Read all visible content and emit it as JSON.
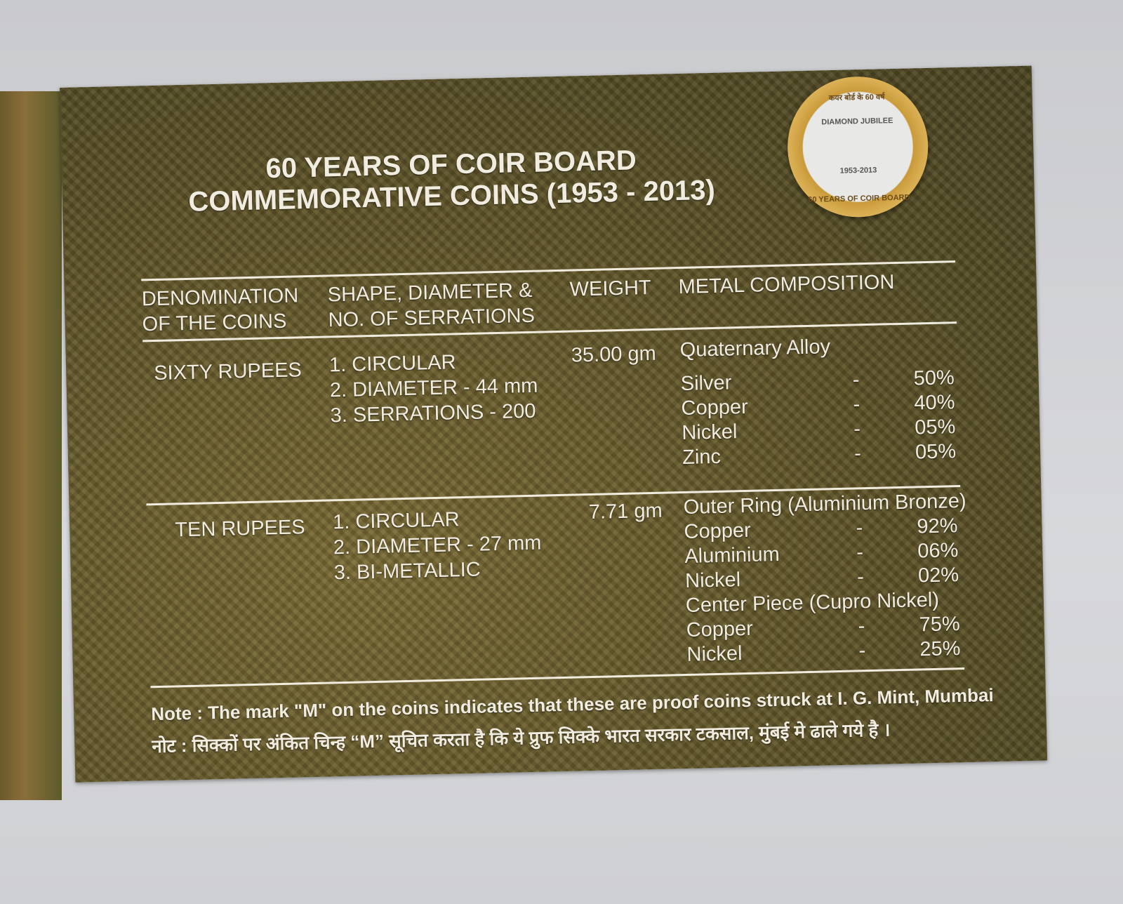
{
  "title": [
    "60 YEARS OF COIR BOARD",
    "COMMEMORATIVE COINS (1953 - 2013)"
  ],
  "coin": {
    "top": "कयर बोर्ड के 60 वर्ष",
    "label": "DIAMOND JUBILEE",
    "years": "1953-2013",
    "bottom": "60 YEARS OF COIR BOARD"
  },
  "table": {
    "headers": [
      [
        "DENOMINATION",
        "OF THE COINS"
      ],
      [
        "SHAPE, DIAMETER &",
        "NO. OF SERRATIONS"
      ],
      [
        "WEIGHT"
      ],
      [
        "METAL COMPOSITION"
      ]
    ],
    "rows": [
      {
        "denomination": "SIXTY RUPEES",
        "shape": [
          "1. CIRCULAR",
          "2. DIAMETER - 44 mm",
          "3. SERRATIONS - 200"
        ],
        "weight": "35.00 gm",
        "composition": [
          {
            "heading": "Quaternary Alloy",
            "metals": [
              [
                "Silver",
                "-",
                "50%"
              ],
              [
                "Copper",
                "-",
                "40%"
              ],
              [
                "Nickel",
                "-",
                "05%"
              ],
              [
                "Zinc",
                "-",
                "05%"
              ]
            ]
          }
        ]
      },
      {
        "denomination": "TEN RUPEES",
        "shape": [
          "1. CIRCULAR",
          "2. DIAMETER - 27 mm",
          "3. BI-METALLIC"
        ],
        "weight": "7.71 gm",
        "composition": [
          {
            "heading": "Outer Ring (Aluminium Bronze)",
            "metals": [
              [
                "Copper",
                "-",
                "92%"
              ],
              [
                "Aluminium",
                "-",
                "06%"
              ],
              [
                "Nickel",
                "-",
                "02%"
              ]
            ]
          },
          {
            "heading": "Center Piece (Cupro Nickel)",
            "metals": [
              [
                "Copper",
                "-",
                "75%"
              ],
              [
                "Nickel",
                "-",
                "25%"
              ]
            ]
          }
        ]
      }
    ]
  },
  "note": [
    "Note : The mark \"M\" on the coins indicates that these are proof coins struck at I. G. Mint, Mumbai",
    "नोट : सिक्कों पर अंकित चिन्ह “M” सूचित करता है कि ये प्रुफ सिक्के भारत सरकार टकसाल, मुंबई मे ढाले गये है ।"
  ]
}
